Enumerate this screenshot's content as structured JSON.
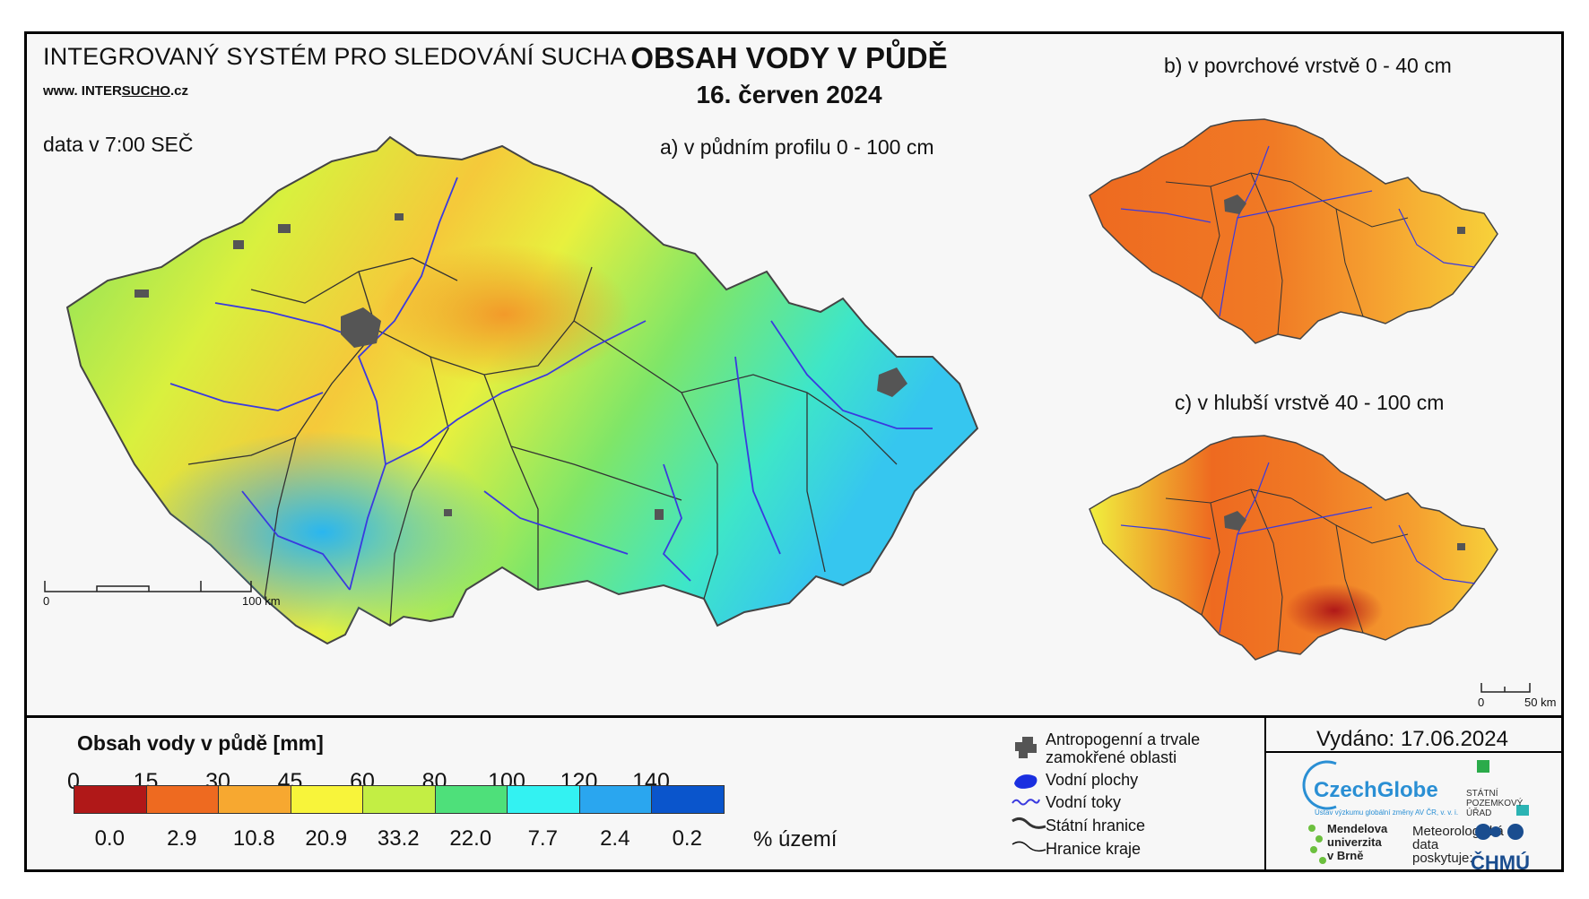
{
  "header": {
    "system_title": "INTEGROVANÝ SYSTÉM PRO SLEDOVÁNÍ SUCHA",
    "website_prefix": "www.",
    "website_main": "INTER",
    "website_highlight": "SUCHO",
    "website_suffix": ".cz",
    "data_time": "data v 7:00 SEČ",
    "main_title": "OBSAH VODY V PŮDĚ",
    "main_date": "16. červen 2024"
  },
  "maps": {
    "a_label": "a) v půdním profilu 0 - 100 cm",
    "b_label": "b) v povrchové vrstvě 0 - 40 cm",
    "c_label": "c) v hlubší vrstvě 40 - 100 cm",
    "scale_main_start": "0",
    "scale_main_end": "100 km",
    "scale_small_start": "0",
    "scale_small_end": "50 km"
  },
  "legend": {
    "title": "Obsah vody v půdě  [mm]",
    "thresholds": [
      "0",
      "15",
      "30",
      "45",
      "60",
      "80",
      "100",
      "120",
      "140"
    ],
    "classes": [
      {
        "color": "#b01818",
        "percent": "0.0"
      },
      {
        "color": "#ee6a20",
        "percent": "2.9"
      },
      {
        "color": "#f7a830",
        "percent": "10.8"
      },
      {
        "color": "#f8f43a",
        "percent": "20.9"
      },
      {
        "color": "#c3ee44",
        "percent": "33.2"
      },
      {
        "color": "#4ee07a",
        "percent": "22.0"
      },
      {
        "color": "#33f2f2",
        "percent": "7.7"
      },
      {
        "color": "#2aa6ef",
        "percent": "2.4"
      },
      {
        "color": "#0a55cc",
        "percent": "0.2"
      }
    ],
    "percent_unit": "% území"
  },
  "map_key": {
    "anthropogenic_line1": "Antropogenní a trvale",
    "anthropogenic_line2": "zamokřené oblasti",
    "water_bodies": "Vodní plochy",
    "streams": "Vodní toky",
    "state_border": "Státní hranice",
    "region_border": "Hranice kraje"
  },
  "footer": {
    "issued": "Vydáno: 17.06.2024",
    "logo_czechglobe": "CzechGlobe",
    "logo_czechglobe_sub": "Ústav výzkumu globální změny AV ČR, v. v. i.",
    "logo_spu_line1": "STÁTNÍ",
    "logo_spu_line2": "POZEMKOVÝ",
    "logo_spu_line3": "ÚŘAD",
    "logo_mendel_line1": "Mendelova",
    "logo_mendel_line2": "univerzita",
    "logo_mendel_line3": "v Brně",
    "met_line1": "Meteorologická",
    "met_line2": "data",
    "met_line3": "poskytuje:",
    "logo_chmu": "ČHMÚ"
  }
}
